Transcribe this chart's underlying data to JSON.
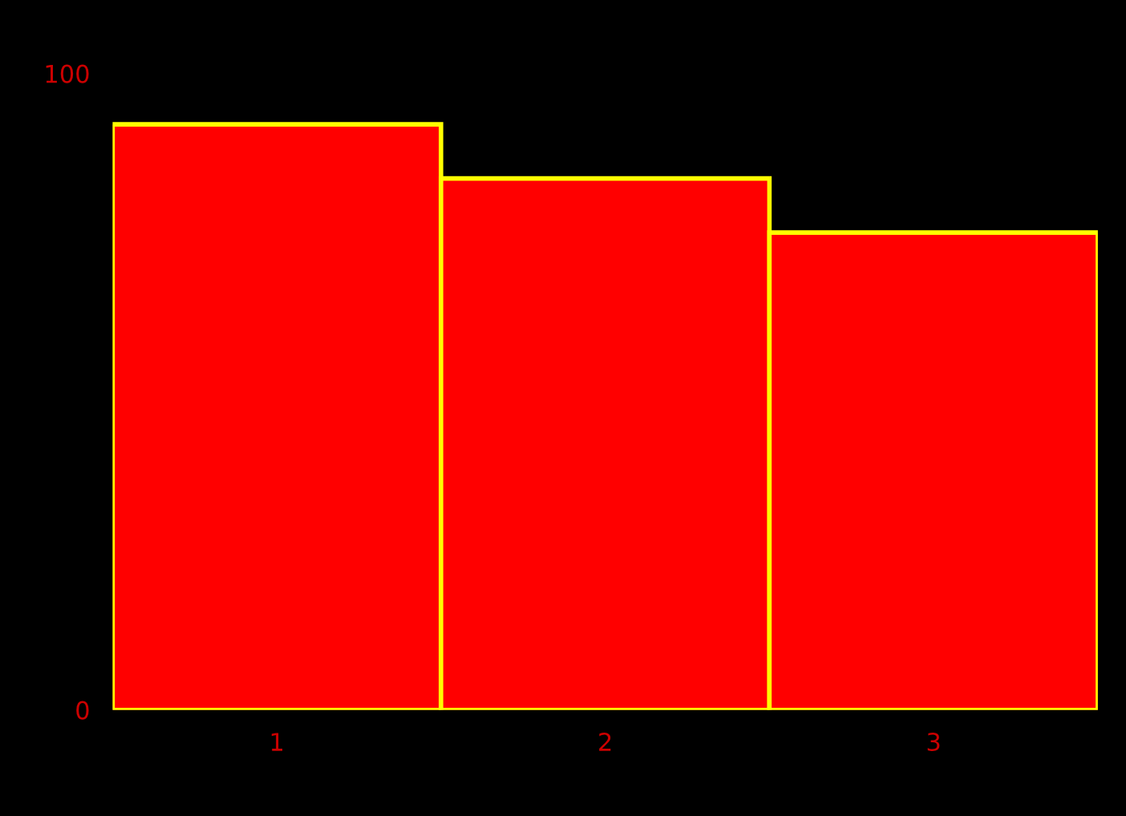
{
  "chart_data": {
    "type": "bar",
    "categories": [
      "1",
      "2",
      "3"
    ],
    "values": [
      92,
      83.5,
      75
    ],
    "color": "#ff0000",
    "ylim": [
      0,
      100
    ],
    "yticks": [
      0,
      100
    ],
    "grid": false,
    "legend": false
  }
}
